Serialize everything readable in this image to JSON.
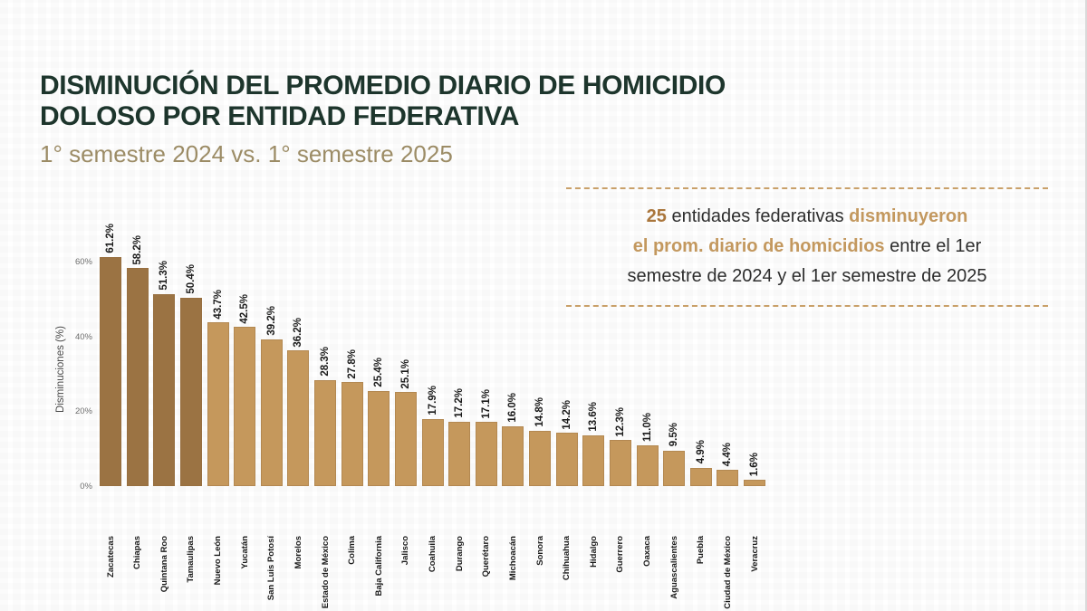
{
  "header": {
    "title_line1": "DISMINUCIÓN DEL PROMEDIO DIARIO DE HOMICIDIO",
    "title_line2": "DOLOSO POR ENTIDAD FEDERATIVA",
    "subtitle": "1° semestre 2024 vs. 1° semestre 2025"
  },
  "annotation": {
    "lines": [
      [
        {
          "t": "25",
          "c": "num"
        },
        {
          "t": " entidades federativas ",
          "c": ""
        },
        {
          "t": "disminuyeron",
          "c": "hl"
        }
      ],
      [
        {
          "t": "el prom. diario de homicidios",
          "c": "hl"
        },
        {
          "t": " entre el 1er",
          "c": ""
        }
      ],
      [
        {
          "t": "semestre de 2024 y el 1er semestre de 2025",
          "c": ""
        }
      ]
    ]
  },
  "chart_data": {
    "type": "bar",
    "title": "Disminución del promedio diario de homicidio doloso por entidad federativa, 1° semestre 2024 vs. 1° semestre 2025",
    "xlabel": "",
    "ylabel": "Disminuciones (%)",
    "ylim": [
      0,
      65
    ],
    "grid": false,
    "legend": null,
    "yticks": [
      {
        "value": 0,
        "label": "0%"
      },
      {
        "value": 20,
        "label": "20%"
      },
      {
        "value": 40,
        "label": "40%"
      },
      {
        "value": 60,
        "label": "60%"
      }
    ],
    "categories": [
      "Zacatecas",
      "Chiapas",
      "Quintana Roo",
      "Tamaulipas",
      "Nuevo León",
      "Yucatán",
      "San Luis Potosí",
      "Morelos",
      "Estado de México",
      "Colima",
      "Baja California",
      "Jalisco",
      "Coahuila",
      "Durango",
      "Querétaro",
      "Michoacán",
      "Sonora",
      "Chihuahua",
      "Hidalgo",
      "Guerrero",
      "Oaxaca",
      "Aguascalientes",
      "Puebla",
      "Ciudad de México",
      "Veracruz"
    ],
    "values": [
      61.2,
      58.2,
      51.3,
      50.4,
      43.7,
      42.5,
      39.2,
      36.2,
      28.3,
      27.8,
      25.4,
      25.1,
      17.9,
      17.2,
      17.1,
      16.0,
      14.8,
      14.2,
      13.6,
      12.3,
      11.0,
      9.5,
      4.9,
      4.4,
      1.6
    ],
    "value_labels": [
      "61.2%",
      "58.2%",
      "51.3%",
      "50.4%",
      "43.7%",
      "42.5%",
      "39.2%",
      "36.2%",
      "28.3%",
      "27.8%",
      "25.4%",
      "25.1%",
      "17.9%",
      "17.2%",
      "17.1%",
      "16.0%",
      "14.8%",
      "14.2%",
      "13.6%",
      "12.3%",
      "11.0%",
      "9.5%",
      "4.9%",
      "4.4%",
      "1.6%"
    ],
    "highlight_count": 4
  },
  "colors": {
    "title": "#1d352c",
    "subtitle": "#9c8c66",
    "bar_highlight": "#9b7343",
    "bar_default": "#c5985c",
    "bar_border": "#8f6a3c",
    "annotation_number": "#aa763c",
    "annotation_highlight": "#c3985e",
    "dashed_border": "#c9a069",
    "text_dark": "#2e2e2e",
    "axis_text": "#6f6f6f",
    "label_dark": "#1a1a1a"
  }
}
